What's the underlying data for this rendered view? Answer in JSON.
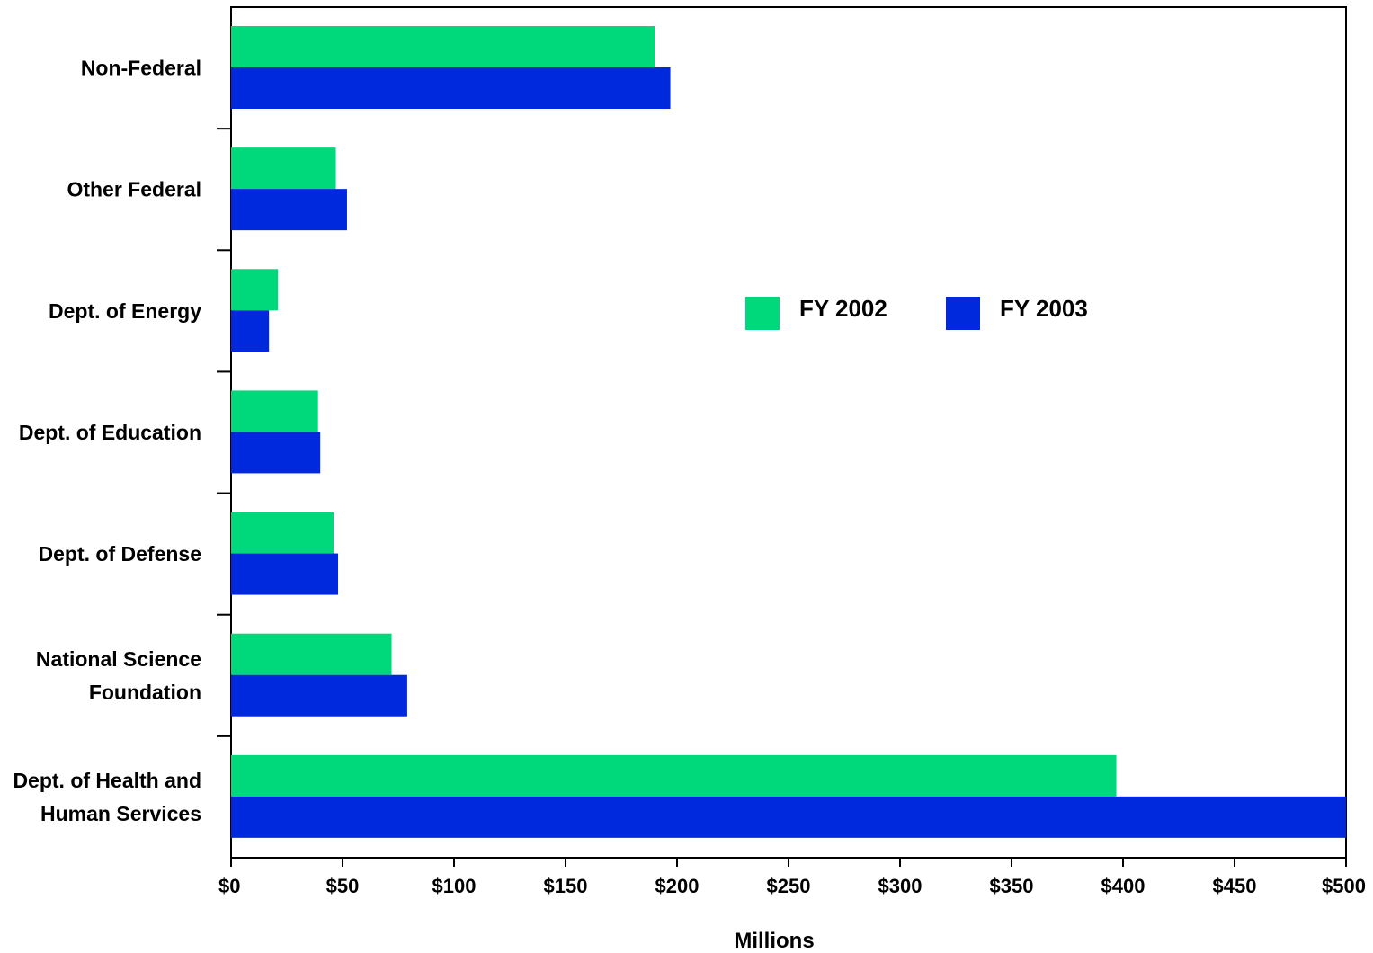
{
  "chart_data": {
    "type": "bar",
    "orientation": "horizontal",
    "title": "",
    "xlabel": "Millions",
    "ylabel": "",
    "xlim": [
      0,
      500
    ],
    "grid": false,
    "legend_position": "center-right",
    "categories": [
      [
        "Non-Federal"
      ],
      [
        "Other Federal"
      ],
      [
        "Dept. of Energy"
      ],
      [
        "Dept. of Education"
      ],
      [
        "Dept. of Defense"
      ],
      [
        "National Science",
        "Foundation"
      ],
      [
        "Dept. of Health and",
        "Human Services"
      ]
    ],
    "x_ticks": [
      0,
      50,
      100,
      150,
      200,
      250,
      300,
      350,
      400,
      450,
      500
    ],
    "x_tick_labels": [
      "$0",
      "$50",
      "$100",
      "$150",
      "$200",
      "$250",
      "$300",
      "$350",
      "$400",
      "$450",
      "$500"
    ],
    "series": [
      {
        "name": "FY 2002",
        "color": "#00d87c",
        "values": [
          190,
          47,
          21,
          39,
          46,
          72,
          397
        ]
      },
      {
        "name": "FY 2003",
        "color": "#0028dc",
        "values": [
          197,
          52,
          17,
          40,
          48,
          79,
          503
        ]
      }
    ]
  }
}
